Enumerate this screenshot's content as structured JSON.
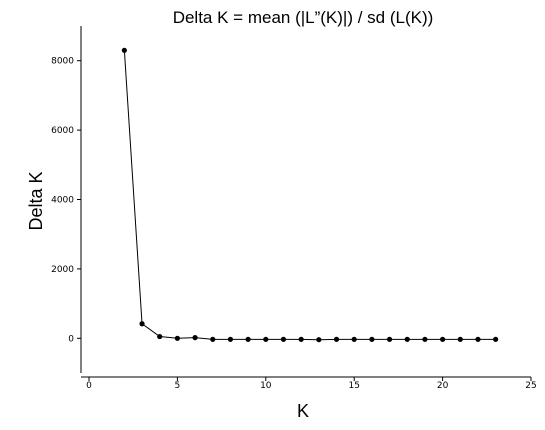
{
  "chart_data": {
    "type": "line",
    "title": "Delta K = mean (|L”(K)|) / sd (L(K))",
    "xlabel": "K",
    "ylabel": "Delta K",
    "xlim": [
      0,
      25
    ],
    "ylim": [
      -1000,
      9000
    ],
    "xticks": [
      0,
      5,
      10,
      15,
      20,
      25
    ],
    "yticks": [
      0,
      2000,
      4000,
      6000,
      8000
    ],
    "grid": false,
    "series": [
      {
        "x": [
          2,
          3,
          4,
          5,
          6,
          7,
          8,
          9,
          10,
          11,
          12,
          13,
          14,
          15,
          16,
          17,
          18,
          19,
          20,
          21,
          22,
          23
        ],
        "y": [
          8300,
          420,
          50,
          0,
          20,
          -30,
          -30,
          -30,
          -30,
          -30,
          -30,
          -40,
          -30,
          -30,
          -30,
          -30,
          -30,
          -30,
          -30,
          -30,
          -30,
          -30
        ]
      }
    ]
  }
}
